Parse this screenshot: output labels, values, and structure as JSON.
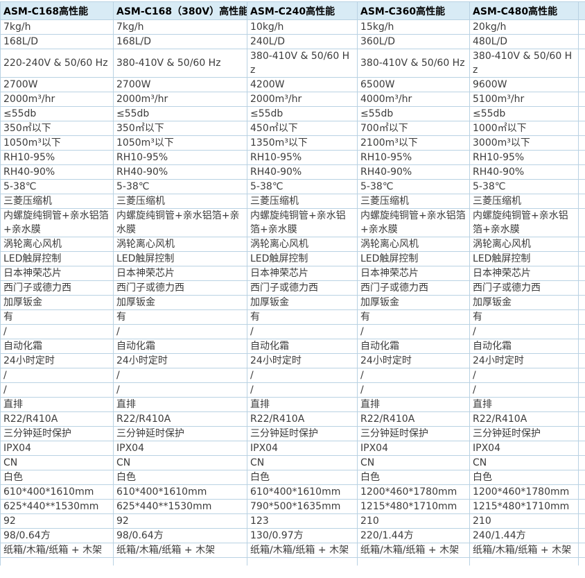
{
  "colors": {
    "header_background": "#d8ebf5",
    "grid_border": "#b9d2e3",
    "header_text": "#000000",
    "body_text": "#3b3b3b"
  },
  "table": {
    "headers": [
      "ASM-C168高性能",
      "ASM-C168（380V）高性能",
      "ASM-C240高性能",
      "ASM-C360高性能",
      "ASM-C480高性能"
    ],
    "rows": [
      [
        "7kg/h",
        "7kg/h",
        "10kg/h",
        "15kg/h",
        "20kg/h"
      ],
      [
        "168L/D",
        "168L/D",
        "240L/D",
        "360L/D",
        "480L/D"
      ],
      [
        "220-240V & 50/60 Hz",
        "380-410V & 50/60 Hz",
        "380-410V & 50/60 Hz",
        "380-410V & 50/60 Hz",
        "380-410V & 50/60 Hz"
      ],
      [
        "2700W",
        "2700W",
        "4200W",
        "6500W",
        "9600W"
      ],
      [
        "2000m³/hr",
        "2000m³/hr",
        "2000m³/hr",
        "4000m³/hr",
        "5100m³/hr"
      ],
      [
        "≤55db",
        "≤55db",
        "≤55db",
        "≤55db",
        "≤55db"
      ],
      [
        "350㎡以下",
        "350㎡以下",
        "450㎡以下",
        "700㎡以下",
        "1000㎡以下"
      ],
      [
        "1050m³以下",
        "1050m³以下",
        "1350m³以下",
        "2100m³以下",
        "3000m³以下"
      ],
      [
        "RH10-95%",
        "RH10-95%",
        "RH10-95%",
        "RH10-95%",
        "RH10-95%"
      ],
      [
        "RH40-90%",
        "RH40-90%",
        "RH40-90%",
        "RH40-90%",
        "RH40-90%"
      ],
      [
        "5-38℃",
        "5-38℃",
        "5-38℃",
        "5-38℃",
        "5-38℃"
      ],
      [
        "三菱压缩机",
        "三菱压缩机",
        "三菱压缩机",
        "三菱压缩机",
        "三菱压缩机"
      ],
      [
        "内螺旋纯铜管+亲水铝箔+亲水膜",
        "内螺旋纯铜管+亲水铝箔+亲水膜",
        "内螺旋纯铜管+亲水铝箔+亲水膜",
        "内螺旋纯铜管+亲水铝箔+亲水膜",
        "内螺旋纯铜管+亲水铝箔+亲水膜"
      ],
      [
        "涡轮离心风机",
        "涡轮离心风机",
        "涡轮离心风机",
        "涡轮离心风机",
        "涡轮离心风机"
      ],
      [
        "LED触屏控制",
        "LED触屏控制",
        "LED触屏控制",
        "LED触屏控制",
        "LED触屏控制"
      ],
      [
        "日本神荣芯片",
        "日本神荣芯片",
        "日本神荣芯片",
        "日本神荣芯片",
        "日本神荣芯片"
      ],
      [
        "西门子或德力西",
        "西门子或德力西",
        "西门子或德力西",
        "西门子或德力西",
        "西门子或德力西"
      ],
      [
        "加厚钣金",
        "加厚钣金",
        "加厚钣金",
        "加厚钣金",
        "加厚钣金"
      ],
      [
        "有",
        "有",
        "有",
        "有",
        "有"
      ],
      [
        "/",
        "/",
        "/",
        "/",
        "/"
      ],
      [
        "自动化霜",
        "自动化霜",
        "自动化霜",
        "自动化霜",
        "自动化霜"
      ],
      [
        "24小时定时",
        "24小时定时",
        "24小时定时",
        "24小时定时",
        "24小时定时"
      ],
      [
        "/",
        "/",
        "/",
        "/",
        "/"
      ],
      [
        "/",
        "/",
        "/",
        "/",
        "/"
      ],
      [
        "直排",
        "直排",
        "直排",
        "直排",
        "直排"
      ],
      [
        "R22/R410A",
        "R22/R410A",
        "R22/R410A",
        "R22/R410A",
        "R22/R410A"
      ],
      [
        "三分钟延时保护",
        "三分钟延时保护",
        "三分钟延时保护",
        "三分钟延时保护",
        "三分钟延时保护"
      ],
      [
        "IPX04",
        "IPX04",
        "IPX04",
        "IPX04",
        "IPX04"
      ],
      [
        "CN",
        "CN",
        "CN",
        "CN",
        "CN"
      ],
      [
        "白色",
        "白色",
        "白色",
        "白色",
        "白色"
      ],
      [
        "610*400*1610mm",
        "610*400*1610mm",
        "610*400*1610mm",
        "1200*460*1780mm",
        "1200*460*1780mm"
      ],
      [
        "625*440**1530mm",
        "625*440**1530mm",
        "790*500*1635mm",
        "1215*480*1710mm",
        "1215*480*1710mm"
      ],
      [
        "92",
        "92",
        "123",
        "210",
        "210"
      ],
      [
        "98/0.64方",
        "98/0.64方",
        "130/0.97方",
        "220/1.44方",
        "240/1.44方"
      ],
      [
        "纸箱/木箱/纸箱 + 木架",
        "纸箱/木箱/纸箱 + 木架",
        "纸箱/木箱/纸箱 + 木架",
        "纸箱/木箱/纸箱 + 木架",
        "纸箱/木箱/纸箱 + 木架"
      ]
    ]
  }
}
